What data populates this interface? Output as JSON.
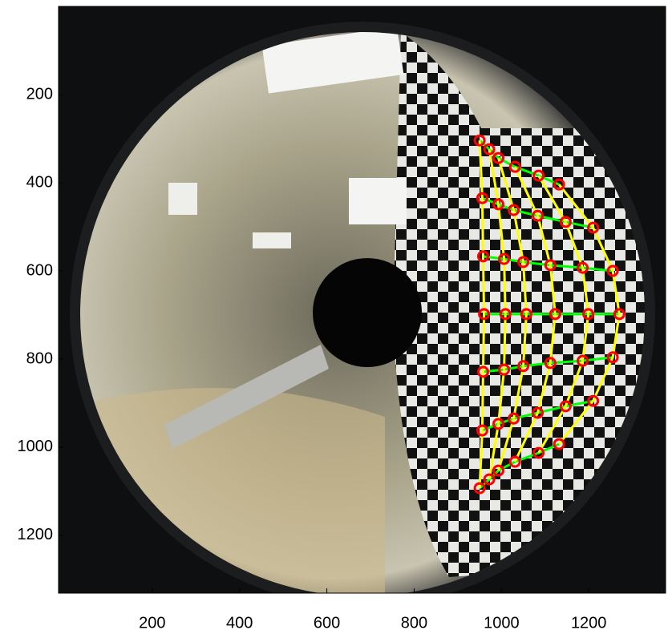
{
  "chart_data": {
    "type": "scatter",
    "xlim": [
      0,
      1376
    ],
    "ylim": [
      0,
      1331
    ],
    "y_reversed": true,
    "xticks": [
      200,
      400,
      600,
      800,
      1000,
      1200
    ],
    "yticks": [
      200,
      400,
      600,
      800,
      1000,
      1200
    ],
    "marker_color": "#ff0000",
    "row_line_color": "#00ff00",
    "column_line_color": "#ffff00",
    "series": [
      {
        "x": [
          950,
          972,
          993,
          1031,
          1085,
          1132
        ],
        "y": [
          304,
          324,
          344,
          364,
          384,
          404
        ]
      },
      {
        "x": [
          956,
          993,
          1028,
          1083,
          1147,
          1210
        ],
        "y": [
          435,
          449,
          462,
          475,
          489,
          502
        ]
      },
      {
        "x": [
          958,
          1006,
          1050,
          1112,
          1186,
          1255
        ],
        "y": [
          567,
          573,
          580,
          587,
          593,
          600
        ]
      },
      {
        "x": [
          960,
          1009,
          1057,
          1123,
          1199,
          1270
        ],
        "y": [
          698,
          698,
          698,
          698,
          698,
          698
        ]
      },
      {
        "x": [
          958,
          1006,
          1050,
          1112,
          1186,
          1255
        ],
        "y": [
          829,
          824,
          816,
          809,
          804,
          796
        ]
      },
      {
        "x": [
          956,
          993,
          1028,
          1083,
          1147,
          1210
        ],
        "y": [
          962,
          947,
          935,
          922,
          907,
          895
        ]
      },
      {
        "x": [
          950,
          972,
          993,
          1031,
          1085,
          1132
        ],
        "y": [
          1093,
          1073,
          1053,
          1033,
          1013,
          993
        ]
      }
    ]
  }
}
